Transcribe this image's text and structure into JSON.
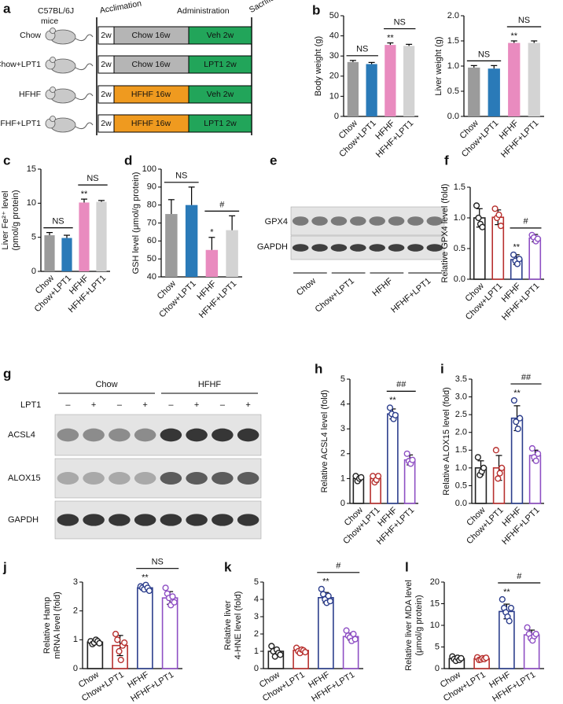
{
  "chart_data": [
    {
      "type": "bar",
      "panel": "b",
      "ylabel": [
        "Body weight (g)"
      ],
      "categories": [
        "Chow",
        "Chow+LPT1",
        "HFHF",
        "HFHF+LPT1"
      ],
      "values": [
        27,
        26,
        35.5,
        35
      ],
      "errors": [
        0.8,
        0.8,
        1,
        0.8
      ],
      "colors": [
        "#9b9b9b",
        "#2a7ab8",
        "#e98bbf",
        "#d3d3d3"
      ],
      "filled": true,
      "ylim": [
        0,
        50
      ],
      "yticks": [
        0,
        10,
        20,
        30,
        40,
        50
      ],
      "value_annotations": [
        null,
        null,
        "**",
        null
      ],
      "brackets": [
        {
          "text": "NS",
          "groups": [
            "Chow",
            "Chow+LPT1"
          ]
        },
        {
          "text": "NS",
          "groups": [
            "HFHF",
            "HFHF+LPT1"
          ]
        }
      ]
    },
    {
      "type": "bar",
      "ylabel": [
        "Liver weight (g)"
      ],
      "categories": [
        "Chow",
        "Chow+LPT1",
        "HFHF",
        "HFHF+LPT1"
      ],
      "values": [
        0.97,
        0.95,
        1.46,
        1.46
      ],
      "errors": [
        0.04,
        0.06,
        0.04,
        0.04
      ],
      "colors": [
        "#9b9b9b",
        "#2a7ab8",
        "#e98bbf",
        "#d3d3d3"
      ],
      "filled": true,
      "ylim": [
        0,
        2
      ],
      "yticks": [
        {
          "value": 0,
          "label": "0.0"
        },
        0.5,
        {
          "value": 1,
          "label": "1.0"
        },
        1.5,
        {
          "value": 2,
          "label": "2.0"
        }
      ],
      "value_annotations": [
        null,
        null,
        "**",
        null
      ],
      "brackets": [
        {
          "text": "NS",
          "groups": [
            "Chow",
            "Chow+LPT1"
          ]
        },
        {
          "text": "NS",
          "groups": [
            "HFHF",
            "HFHF+LPT1"
          ]
        }
      ]
    },
    {
      "type": "bar",
      "panel": "c",
      "ylabel": [
        "Liver Fe²⁺ level",
        "(pmol/g protein)"
      ],
      "categories": [
        "Chow",
        "Chow+LPT1",
        "HFHF",
        "HFHF+LPT1"
      ],
      "values": [
        5.3,
        4.9,
        10.1,
        10.2
      ],
      "errors": [
        0.4,
        0.4,
        0.5,
        0.2
      ],
      "colors": [
        "#9b9b9b",
        "#2a7ab8",
        "#e98bbf",
        "#d3d3d3"
      ],
      "filled": true,
      "ylim": [
        0,
        15
      ],
      "yticks": [
        0,
        5,
        10,
        15
      ],
      "value_annotations": [
        null,
        null,
        "**",
        null
      ],
      "brackets": [
        {
          "text": "NS",
          "groups": [
            "Chow",
            "Chow+LPT1"
          ]
        },
        {
          "text": "NS",
          "groups": [
            "HFHF",
            "HFHF+LPT1"
          ]
        }
      ]
    },
    {
      "type": "bar",
      "panel": "d",
      "ylabel": [
        "GSH level (μmol/g protein)"
      ],
      "categories": [
        "Chow",
        "Chow+LPT1",
        "HFHF",
        "HFHF+LPT1"
      ],
      "values": [
        75,
        80,
        55,
        66
      ],
      "errors": [
        8,
        10,
        7,
        8
      ],
      "colors": [
        "#9b9b9b",
        "#2a7ab8",
        "#e98bbf",
        "#d3d3d3"
      ],
      "filled": true,
      "ylim": [
        40,
        100
      ],
      "yticks": [
        40,
        50,
        60,
        70,
        80,
        90,
        100
      ],
      "value_annotations": [
        null,
        null,
        "*",
        null
      ],
      "brackets": [
        {
          "text": "NS",
          "groups": [
            "Chow",
            "Chow+LPT1"
          ]
        },
        {
          "text": "#",
          "groups": [
            "HFHF",
            "HFHF+LPT1"
          ]
        }
      ]
    },
    {
      "type": "bar",
      "panel": "f",
      "ylabel": [
        "Relative GPX4 level (fold)"
      ],
      "categories": [
        "Chow",
        "Chow+LPT1",
        "HFHF",
        "HFHF+LPT1"
      ],
      "values": [
        1.0,
        1.01,
        0.32,
        0.67
      ],
      "errors": [
        0.15,
        0.12,
        0.08,
        0.06
      ],
      "points": [
        [
          1.2,
          1.0,
          0.9,
          0.85
        ],
        [
          1.15,
          1.0,
          1.05,
          0.87
        ],
        [
          0.4,
          0.3,
          0.25,
          0.33
        ],
        [
          0.72,
          0.68,
          0.62,
          0.66
        ]
      ],
      "colors": [
        "#222222",
        "#b8312f",
        "#2c3e8c",
        "#8e4fc4"
      ],
      "filled": false,
      "ylim": [
        0,
        1.5
      ],
      "yticks": [
        {
          "value": 0,
          "label": "0.0"
        },
        0.5,
        {
          "value": 1,
          "label": "1.0"
        },
        1.5
      ],
      "value_annotations": [
        null,
        null,
        "**",
        null
      ],
      "brackets": [
        {
          "text": "#",
          "groups": [
            "HFHF",
            "HFHF+LPT1"
          ]
        }
      ]
    },
    {
      "type": "bar",
      "panel": "h",
      "ylabel": [
        "Relative ACSL4 level (fold)"
      ],
      "categories": [
        "Chow",
        "Chow+LPT1",
        "HFHF",
        "HFHF+LPT1"
      ],
      "values": [
        1.0,
        1.0,
        3.6,
        1.75
      ],
      "errors": [
        0.1,
        0.15,
        0.2,
        0.2
      ],
      "points": [
        [
          1.1,
          0.9,
          1.0,
          1.05
        ],
        [
          1.1,
          0.85,
          0.95,
          1.1
        ],
        [
          3.85,
          3.6,
          3.4,
          3.55
        ],
        [
          2.0,
          1.7,
          1.6,
          1.75
        ]
      ],
      "colors": [
        "#222222",
        "#b8312f",
        "#2c3e8c",
        "#8e4fc4"
      ],
      "filled": false,
      "ylim": [
        0,
        5
      ],
      "yticks": [
        0,
        1,
        2,
        3,
        4,
        5
      ],
      "value_annotations": [
        null,
        null,
        "**",
        null
      ],
      "brackets": [
        {
          "text": "##",
          "groups": [
            "HFHF",
            "HFHF+LPT1"
          ]
        }
      ]
    },
    {
      "type": "bar",
      "panel": "i",
      "ylabel": [
        "Relative ALOX15 level (fold)"
      ],
      "categories": [
        "Chow",
        "Chow+LPT1",
        "HFHF",
        "HFHF+LPT1"
      ],
      "values": [
        1.0,
        1.0,
        2.4,
        1.35
      ],
      "errors": [
        0.2,
        0.35,
        0.35,
        0.15
      ],
      "points": [
        [
          1.3,
          0.8,
          0.9,
          1.0
        ],
        [
          1.5,
          0.7,
          0.85,
          1.0
        ],
        [
          2.9,
          2.3,
          2.1,
          2.4
        ],
        [
          1.55,
          1.3,
          1.2,
          1.4
        ]
      ],
      "colors": [
        "#222222",
        "#b8312f",
        "#2c3e8c",
        "#8e4fc4"
      ],
      "filled": false,
      "ylim": [
        0,
        3.5
      ],
      "yticks": [
        {
          "value": 0,
          "label": "0.0"
        },
        0.5,
        {
          "value": 1,
          "label": "1.0"
        },
        1.5,
        {
          "value": 2,
          "label": "2.0"
        },
        2.5,
        {
          "value": 3,
          "label": "3.0"
        },
        3.5
      ],
      "value_annotations": [
        null,
        null,
        "**",
        null
      ],
      "brackets": [
        {
          "text": "##",
          "groups": [
            "HFHF",
            "HFHF+LPT1"
          ]
        }
      ]
    },
    {
      "type": "bar",
      "panel": "j",
      "ylabel": [
        "Relative Hamp",
        "mRNA level (fold)"
      ],
      "categories": [
        "Chow",
        "Chow+LPT1",
        "HFHF",
        "HFHF+LPT1"
      ],
      "values": [
        0.92,
        0.8,
        2.8,
        2.45
      ],
      "errors": [
        0.06,
        0.35,
        0.06,
        0.22
      ],
      "points": [
        [
          0.95,
          0.85,
          0.9,
          1.0,
          0.95,
          0.88
        ],
        [
          1.2,
          1.0,
          0.6,
          0.3,
          0.8,
          0.9
        ],
        [
          2.85,
          2.8,
          2.75,
          2.9,
          2.8,
          2.7
        ],
        [
          2.8,
          2.6,
          2.45,
          2.2,
          2.5,
          2.3
        ]
      ],
      "colors": [
        "#222222",
        "#b8312f",
        "#2c3e8c",
        "#8e4fc4"
      ],
      "filled": false,
      "ylim": [
        0,
        3
      ],
      "yticks": [
        0,
        1,
        2,
        3
      ],
      "value_annotations": [
        null,
        null,
        "**",
        null
      ],
      "brackets": [
        {
          "text": "NS",
          "groups": [
            "HFHF",
            "HFHF+LPT1"
          ]
        }
      ]
    },
    {
      "type": "bar",
      "panel": "k",
      "ylabel": [
        "Relative liver",
        "4-HNE level (fold)"
      ],
      "categories": [
        "Chow",
        "Chow+LPT1",
        "HFHF",
        "HFHF+LPT1"
      ],
      "values": [
        1.0,
        1.05,
        4.1,
        1.85
      ],
      "errors": [
        0.2,
        0.12,
        0.3,
        0.2
      ],
      "points": [
        [
          1.3,
          1.0,
          0.7,
          1.1,
          0.9,
          0.8
        ],
        [
          1.2,
          1.0,
          0.9,
          1.1,
          1.05,
          0.95
        ],
        [
          4.6,
          4.3,
          4.0,
          3.8,
          4.2,
          3.9
        ],
        [
          2.2,
          1.9,
          1.8,
          1.6,
          2.0,
          1.7
        ]
      ],
      "colors": [
        "#222222",
        "#b8312f",
        "#2c3e8c",
        "#8e4fc4"
      ],
      "filled": false,
      "ylim": [
        0,
        5
      ],
      "yticks": [
        0,
        1,
        2,
        3,
        4,
        5
      ],
      "value_annotations": [
        null,
        null,
        "**",
        null
      ],
      "brackets": [
        {
          "text": "#",
          "groups": [
            "HFHF",
            "HFHF+LPT1"
          ]
        }
      ]
    },
    {
      "type": "bar",
      "panel": "l",
      "ylabel": [
        "Relative liver MDA level",
        "(μmol/g protein)"
      ],
      "categories": [
        "Chow",
        "Chow+LPT1",
        "HFHF",
        "HFHF+LPT1"
      ],
      "values": [
        2.3,
        2.3,
        13.2,
        7.8
      ],
      "errors": [
        0.4,
        0.3,
        1.7,
        1.1
      ],
      "points": [
        [
          2.8,
          2.2,
          1.8,
          2.5,
          2.0,
          2.4
        ],
        [
          2.6,
          2.0,
          2.1,
          2.4,
          2.2,
          2.5
        ],
        [
          16,
          14,
          13,
          12,
          11,
          14
        ],
        [
          9.5,
          8,
          7,
          6.5,
          7.5,
          8
        ]
      ],
      "colors": [
        "#222222",
        "#b8312f",
        "#2c3e8c",
        "#8e4fc4"
      ],
      "filled": false,
      "ylim": [
        0,
        20
      ],
      "yticks": [
        0,
        5,
        10,
        15,
        20
      ],
      "value_annotations": [
        null,
        null,
        "**",
        null
      ],
      "brackets": [
        {
          "text": "#",
          "groups": [
            "HFHF",
            "HFHF+LPT1"
          ]
        }
      ]
    }
  ],
  "schematic": {
    "panel": "a",
    "header": [
      "C57BL/6J",
      "mice"
    ],
    "columns": [
      "Acclimation",
      "Administration",
      "Sacrifice"
    ],
    "rows": [
      {
        "group": "Chow",
        "acclimation": "2w",
        "diet": "Chow  16w",
        "treatment": "Veh 2w",
        "diet_color": "#b5b5b5"
      },
      {
        "group": "Chow+LPT1",
        "acclimation": "2w",
        "diet": "Chow  16w",
        "treatment": "LPT1 2w",
        "diet_color": "#b5b5b5"
      },
      {
        "group": "HFHF",
        "acclimation": "2w",
        "diet": "HFHF 16w",
        "treatment": "Veh 2w",
        "diet_color": "#ef9a1f"
      },
      {
        "group": "HFHF+LPT1",
        "acclimation": "2w",
        "diet": "HFHF 16w",
        "treatment": "LPT1 2w",
        "diet_color": "#ef9a1f"
      }
    ],
    "treatment_color": "#22a55a"
  },
  "blot_e": {
    "panel": "e",
    "proteins": [
      "GPX4",
      "GAPDH"
    ],
    "groups": [
      "Chow",
      "Chow+LPT1",
      "HFHF",
      "HFHF+LPT1"
    ]
  },
  "blot_g": {
    "panel": "g",
    "groups": [
      "Chow",
      "HFHF"
    ],
    "treatment": "LPT1",
    "signs": [
      "–",
      "+",
      "–",
      "+",
      "–",
      "+",
      "–",
      "+"
    ],
    "proteins": [
      "ACSL4",
      "ALOX15",
      "GAPDH"
    ]
  }
}
